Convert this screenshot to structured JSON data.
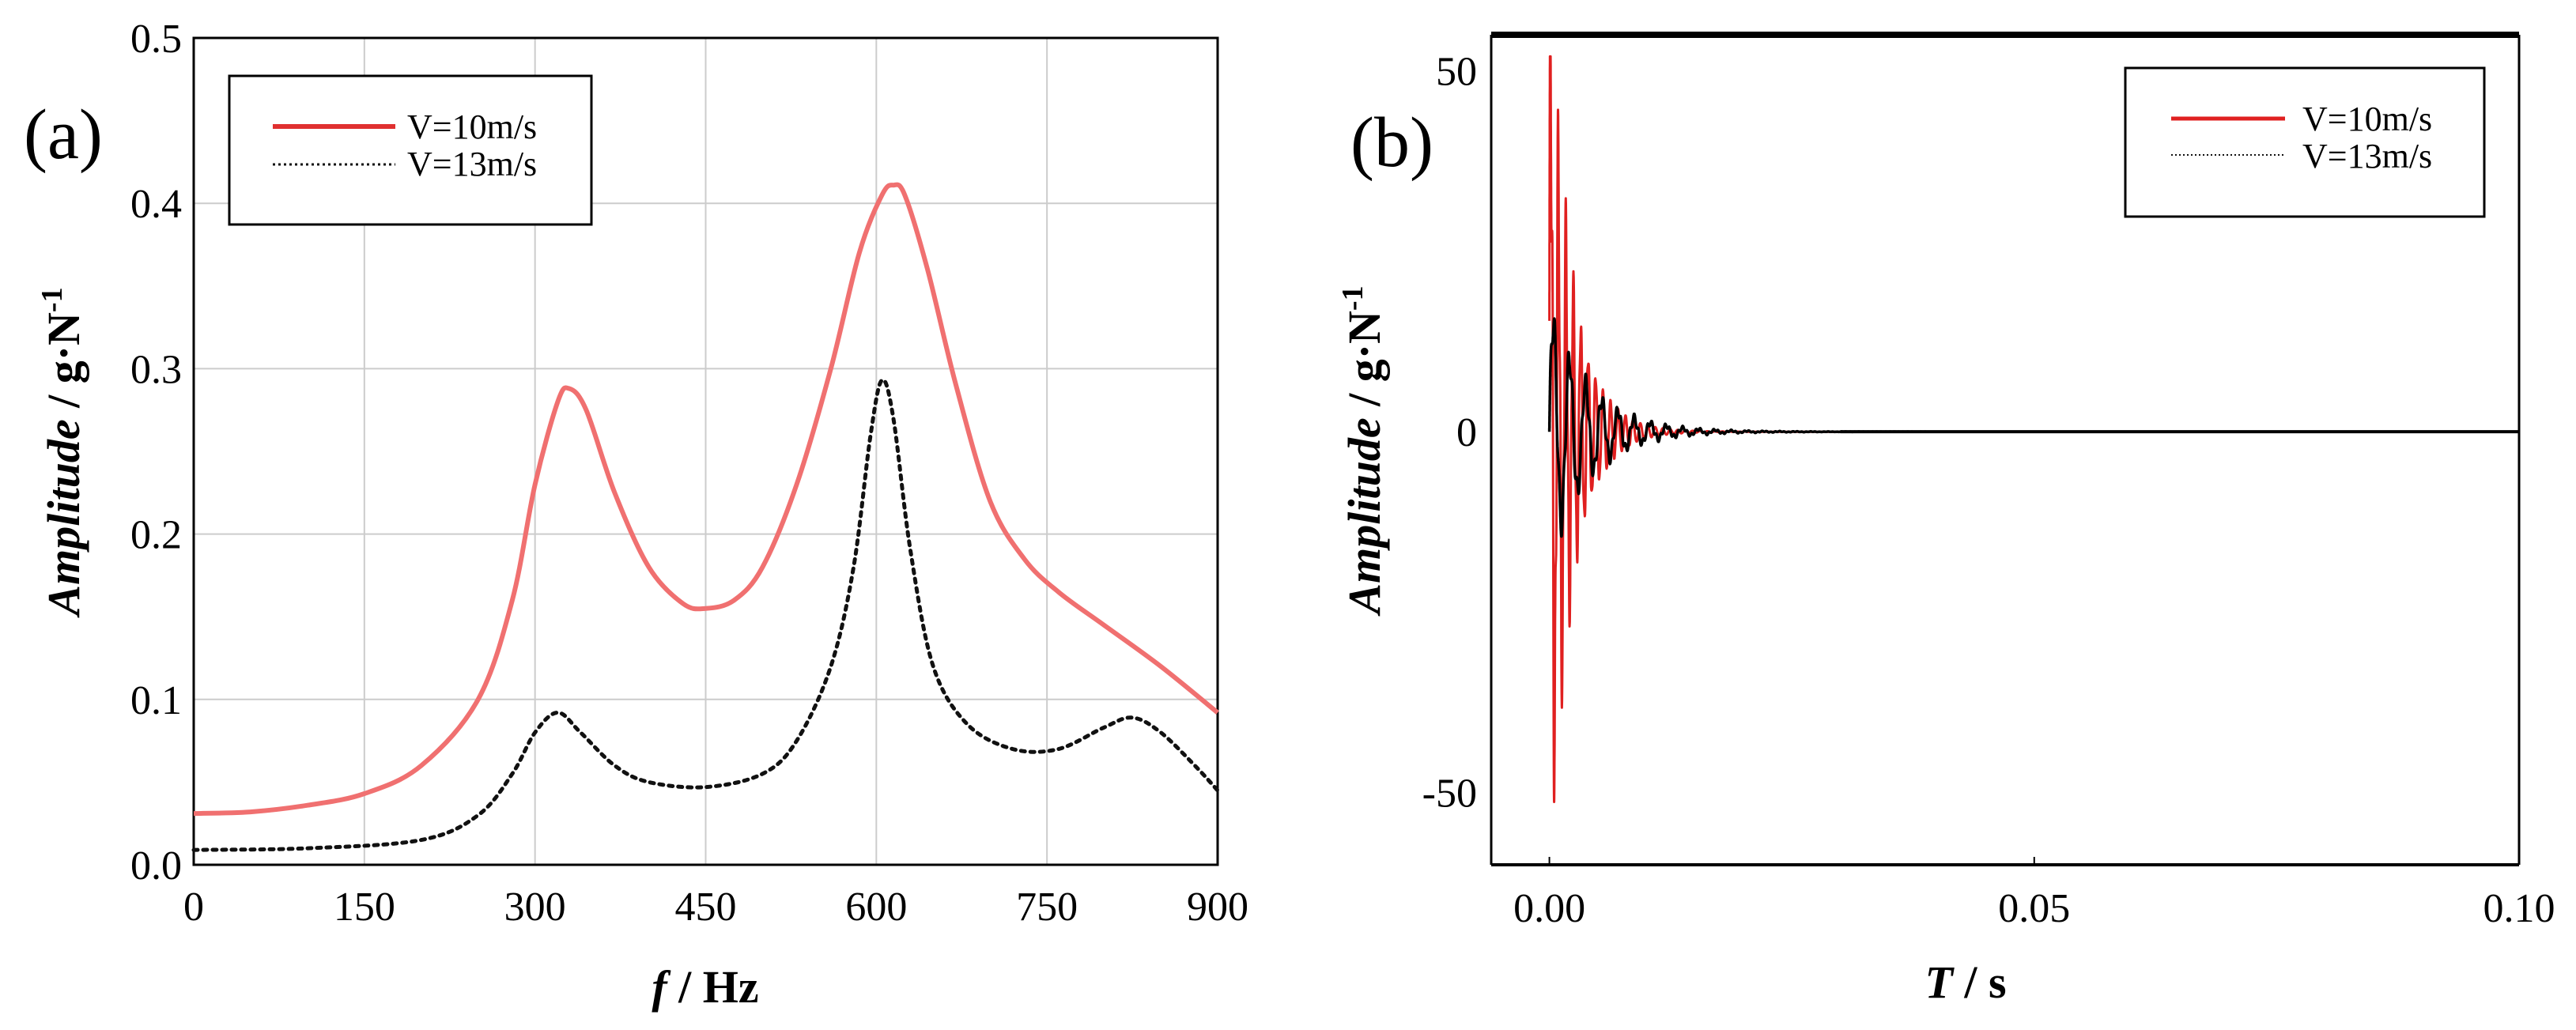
{
  "chart_data": [
    {
      "panel_label": "(a)",
      "type": "line",
      "xlabel_var": "f",
      "xlabel_unit": " / Hz",
      "ylabel_var": "Amplitude",
      "ylabel_unit": " / g·N",
      "ylabel_sup": "-1",
      "xlim": [
        0,
        900
      ],
      "ylim": [
        0,
        0.5
      ],
      "grid": true,
      "x_ticks": [
        0,
        150,
        300,
        450,
        600,
        750,
        900
      ],
      "x_tick_labels": [
        "0",
        "150",
        "300",
        "450",
        "600",
        "750",
        "900"
      ],
      "y_ticks": [
        0,
        0.1,
        0.2,
        0.3,
        0.4,
        0.5
      ],
      "y_tick_labels": [
        "0.0",
        "0.1",
        "0.2",
        "0.3",
        "0.4",
        "0.5"
      ],
      "legend": {
        "placement": "top-left",
        "entries": [
          "V=10m/s",
          "V=13m/s"
        ]
      },
      "series": [
        {
          "name": "V=10m/s",
          "color": "#f07070",
          "style": "solid",
          "points": [
            [
              0,
              0.031
            ],
            [
              50,
              0.032
            ],
            [
              100,
              0.036
            ],
            [
              150,
              0.043
            ],
            [
              200,
              0.06
            ],
            [
              250,
              0.1
            ],
            [
              280,
              0.16
            ],
            [
              300,
              0.23
            ],
            [
              320,
              0.28
            ],
            [
              330,
              0.288
            ],
            [
              345,
              0.275
            ],
            [
              370,
              0.225
            ],
            [
              400,
              0.18
            ],
            [
              430,
              0.158
            ],
            [
              450,
              0.155
            ],
            [
              475,
              0.16
            ],
            [
              500,
              0.18
            ],
            [
              530,
              0.23
            ],
            [
              560,
              0.3
            ],
            [
              585,
              0.37
            ],
            [
              605,
              0.405
            ],
            [
              615,
              0.411
            ],
            [
              625,
              0.405
            ],
            [
              645,
              0.36
            ],
            [
              670,
              0.29
            ],
            [
              700,
              0.22
            ],
            [
              730,
              0.185
            ],
            [
              760,
              0.165
            ],
            [
              800,
              0.145
            ],
            [
              850,
              0.12
            ],
            [
              900,
              0.092
            ]
          ]
        },
        {
          "name": "V=13m/s",
          "color": "#111111",
          "style": "dotted",
          "points": [
            [
              0,
              0.009
            ],
            [
              100,
              0.01
            ],
            [
              200,
              0.015
            ],
            [
              250,
              0.03
            ],
            [
              280,
              0.055
            ],
            [
              300,
              0.08
            ],
            [
              320,
              0.092
            ],
            [
              340,
              0.08
            ],
            [
              370,
              0.06
            ],
            [
              400,
              0.05
            ],
            [
              450,
              0.047
            ],
            [
              500,
              0.055
            ],
            [
              530,
              0.075
            ],
            [
              560,
              0.12
            ],
            [
              580,
              0.18
            ],
            [
              595,
              0.26
            ],
            [
              605,
              0.293
            ],
            [
              615,
              0.27
            ],
            [
              630,
              0.19
            ],
            [
              650,
              0.12
            ],
            [
              680,
              0.085
            ],
            [
              720,
              0.07
            ],
            [
              760,
              0.07
            ],
            [
              800,
              0.083
            ],
            [
              825,
              0.089
            ],
            [
              850,
              0.08
            ],
            [
              880,
              0.06
            ],
            [
              900,
              0.045
            ]
          ]
        }
      ]
    },
    {
      "panel_label": "(b)",
      "type": "line",
      "xlabel_var": "T",
      "xlabel_unit": " / s",
      "ylabel_var": "Amplitude",
      "ylabel_unit": " / g·N",
      "ylabel_sup": "-1",
      "xlim": [
        -0.006,
        0.1
      ],
      "ylim": [
        -60,
        55
      ],
      "grid": false,
      "x_ticks": [
        0,
        0.05,
        0.1
      ],
      "x_tick_labels": [
        "0.00",
        "0.05",
        "0.10"
      ],
      "y_ticks": [
        -50,
        0,
        50
      ],
      "y_tick_labels": [
        "-50",
        "0",
        "50"
      ],
      "legend": {
        "placement": "top-right",
        "entries": [
          "V=10m/s",
          "V=13m/s"
        ]
      },
      "series": [
        {
          "name": "V=10m/s",
          "color": "#e02020",
          "style": "solid",
          "signal": {
            "peak_max": 52,
            "peak_min": -56,
            "decay_end": 0.025,
            "amplitude": 52,
            "decay_tau": 0.0025,
            "freq_hz": 1300
          }
        },
        {
          "name": "V=13m/s",
          "color": "#000000",
          "style": "solid",
          "signal": {
            "peak_max": 17,
            "peak_min": -16,
            "decay_end": 0.03,
            "amplitude": 17,
            "decay_tau": 0.004,
            "freq_hz": 600
          }
        }
      ]
    }
  ]
}
